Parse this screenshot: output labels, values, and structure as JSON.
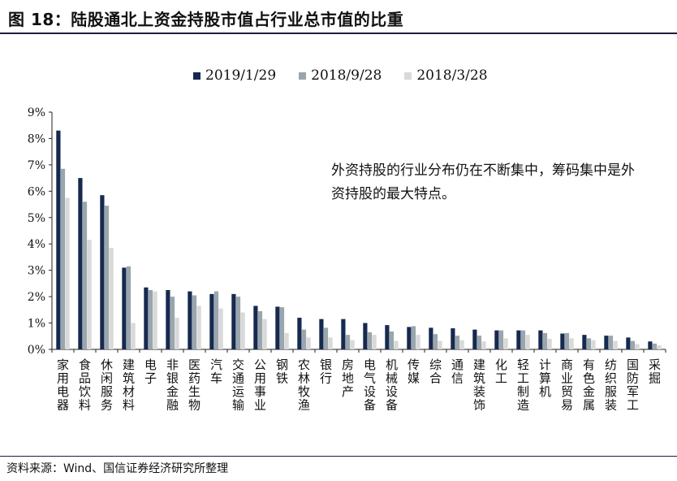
{
  "header": {
    "title": "图 18：陆股通北上资金持股市值占行业总市值的比重"
  },
  "footer": {
    "source": "资料来源：Wind、国信证券经济研究所整理"
  },
  "annotation": {
    "text": "外资持股的行业分布仍在不断集中，筹码集中是外资持股的最大特点。"
  },
  "colors": {
    "series1": "#16294f",
    "series2": "#99a6ad",
    "series3": "#d9d9d9"
  },
  "chart_data": {
    "type": "bar",
    "title": "",
    "xlabel": "",
    "ylabel": "",
    "ylim": [
      0,
      9
    ],
    "yticks": [
      "0%",
      "1%",
      "2%",
      "3%",
      "4%",
      "5%",
      "6%",
      "7%",
      "8%",
      "9%"
    ],
    "legend_position": "top",
    "grid": false,
    "categories": [
      "家用电器",
      "食品饮料",
      "休闲服务",
      "建筑材料",
      "电子",
      "非银金融",
      "医药生物",
      "汽车",
      "交通运输",
      "公用事业",
      "钢铁",
      "农林牧渔",
      "银行",
      "房地产",
      "电气设备",
      "机械设备",
      "传媒",
      "综合",
      "通信",
      "建筑装饰",
      "化工",
      "轻工制造",
      "计算机",
      "商业贸易",
      "有色金属",
      "纺织服装",
      "国防军工",
      "采掘"
    ],
    "series": [
      {
        "name": "2019/1/29",
        "values": [
          8.3,
          6.5,
          5.85,
          3.1,
          2.35,
          2.25,
          2.2,
          2.1,
          2.1,
          1.65,
          1.62,
          1.2,
          1.15,
          1.15,
          1.0,
          0.92,
          0.85,
          0.82,
          0.8,
          0.75,
          0.72,
          0.72,
          0.72,
          0.6,
          0.55,
          0.52,
          0.45,
          0.3
        ]
      },
      {
        "name": "2018/9/28",
        "values": [
          6.85,
          5.6,
          5.45,
          3.15,
          2.25,
          2.0,
          2.05,
          2.2,
          2.0,
          1.45,
          1.6,
          0.75,
          0.82,
          0.55,
          0.65,
          0.68,
          0.88,
          0.58,
          0.52,
          0.52,
          0.72,
          0.72,
          0.62,
          0.62,
          0.42,
          0.52,
          0.32,
          0.22
        ]
      },
      {
        "name": "2018/3/28",
        "values": [
          5.75,
          4.15,
          3.85,
          1.0,
          2.2,
          1.2,
          1.65,
          1.55,
          1.4,
          1.15,
          0.62,
          0.45,
          0.45,
          0.35,
          0.55,
          0.32,
          0.55,
          0.32,
          0.35,
          0.3,
          0.42,
          0.55,
          0.4,
          0.42,
          0.35,
          0.32,
          0.2,
          0.15
        ]
      }
    ]
  }
}
